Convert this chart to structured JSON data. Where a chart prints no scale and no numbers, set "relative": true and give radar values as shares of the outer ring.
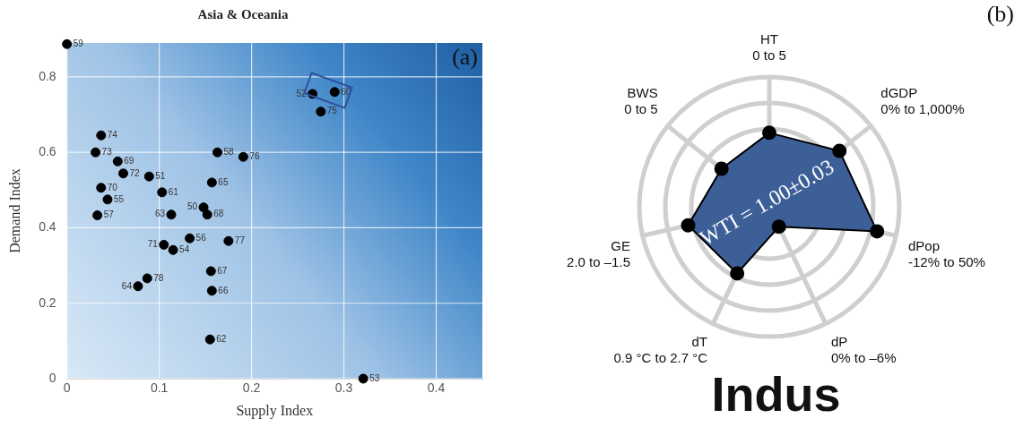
{
  "chart_data": [
    {
      "type": "scatter",
      "title": "Asia & Oceania",
      "xlabel": "Supply Index",
      "ylabel": "Demand Index",
      "xlim": [
        0,
        0.45
      ],
      "ylim": [
        0,
        0.89
      ],
      "xticks": [
        0,
        0.1,
        0.2,
        0.3,
        0.4
      ],
      "yticks": [
        0,
        0.2,
        0.4,
        0.6,
        0.8
      ],
      "grid": true,
      "legend": false,
      "marker": "circle",
      "annotations": [
        "(a)",
        {
          "text": "59",
          "x": 0,
          "y": 0.887
        },
        {
          "text": "52",
          "x": 0.266,
          "y": 0.755
        },
        {
          "text": "60",
          "x": 0.29,
          "y": 0.76
        },
        {
          "text": "75",
          "x": 0.275,
          "y": 0.708
        },
        {
          "text": "58",
          "x": 0.163,
          "y": 0.6
        },
        {
          "text": "76",
          "x": 0.191,
          "y": 0.588
        },
        {
          "text": "65",
          "x": 0.157,
          "y": 0.52
        },
        {
          "text": "50",
          "x": 0.148,
          "y": 0.454
        },
        {
          "text": "68",
          "x": 0.152,
          "y": 0.435
        },
        {
          "text": "74",
          "x": 0.037,
          "y": 0.645
        },
        {
          "text": "73",
          "x": 0.031,
          "y": 0.6
        },
        {
          "text": "69",
          "x": 0.055,
          "y": 0.576
        },
        {
          "text": "72",
          "x": 0.061,
          "y": 0.544
        },
        {
          "text": "51",
          "x": 0.089,
          "y": 0.536
        },
        {
          "text": "70",
          "x": 0.037,
          "y": 0.506
        },
        {
          "text": "55",
          "x": 0.044,
          "y": 0.475
        },
        {
          "text": "61",
          "x": 0.103,
          "y": 0.494
        },
        {
          "text": "63",
          "x": 0.113,
          "y": 0.435
        },
        {
          "text": "57",
          "x": 0.033,
          "y": 0.433
        },
        {
          "text": "71",
          "x": 0.105,
          "y": 0.355
        },
        {
          "text": "56",
          "x": 0.133,
          "y": 0.372
        },
        {
          "text": "54",
          "x": 0.115,
          "y": 0.341
        },
        {
          "text": "77",
          "x": 0.175,
          "y": 0.365
        },
        {
          "text": "67",
          "x": 0.156,
          "y": 0.285
        },
        {
          "text": "66",
          "x": 0.157,
          "y": 0.233
        },
        {
          "text": "78",
          "x": 0.087,
          "y": 0.266
        },
        {
          "text": "64",
          "x": 0.077,
          "y": 0.245
        },
        {
          "text": "62",
          "x": 0.155,
          "y": 0.104
        },
        {
          "text": "53",
          "x": 0.321,
          "y": 0
        }
      ],
      "series": [
        {
          "color": "#000000",
          "x": [
            0,
            0.266,
            0.29,
            0.275,
            0.163,
            0.191,
            0.157,
            0.148,
            0.152,
            0.037,
            0.031,
            0.055,
            0.061,
            0.089,
            0.037,
            0.044,
            0.103,
            0.113,
            0.033,
            0.105,
            0.133,
            0.115,
            0.175,
            0.156,
            0.157,
            0.087,
            0.077,
            0.155,
            0.321
          ],
          "values": [
            0.887,
            0.755,
            0.76,
            0.708,
            0.6,
            0.588,
            0.52,
            0.454,
            0.435,
            0.645,
            0.6,
            0.576,
            0.544,
            0.536,
            0.506,
            0.475,
            0.494,
            0.435,
            0.433,
            0.355,
            0.372,
            0.341,
            0.365,
            0.285,
            0.233,
            0.266,
            0.245,
            0.104,
            0
          ]
        }
      ]
    },
    {
      "type": "radar",
      "title": "Indus",
      "relative": true,
      "legend": false,
      "marker": "circle",
      "categories": [
        "HT\n0 to 5",
        "dGDP\n0% to 1,000%",
        "dPop\n-12% to 50%",
        "dP\n0% to –6%",
        "dT\n0.9 °C to 2.7 °C",
        "GE\n2.0 to –1.5",
        "BWS\n0 to 5"
      ],
      "annotations": [
        "WTI = 1.00±0.03",
        "(b)"
      ],
      "series": [
        {
          "color": "#3d5f98",
          "values": [
            0.57,
            0.69,
            0.85,
            0.17,
            0.57,
            0.64,
            0.47
          ]
        }
      ]
    }
  ]
}
